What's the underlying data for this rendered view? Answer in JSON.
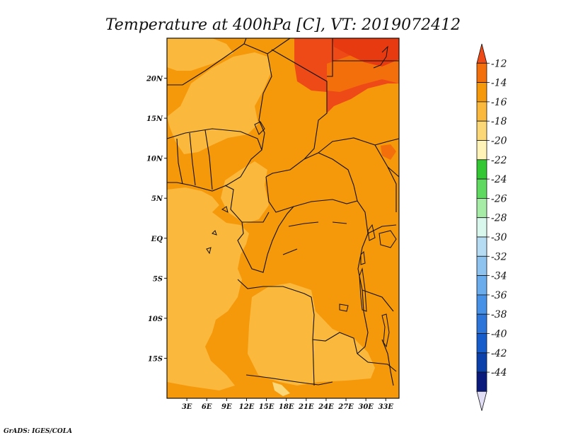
{
  "chart_data": {
    "type": "heatmap",
    "title": "Temperature at 400hPa [C], VT: 2019072412",
    "xlabel": "",
    "ylabel": "",
    "xlim": [
      0,
      35
    ],
    "ylim": [
      -20,
      25
    ],
    "x_ticks": [
      {
        "value": 3,
        "label": "3E"
      },
      {
        "value": 6,
        "label": "6E"
      },
      {
        "value": 9,
        "label": "9E"
      },
      {
        "value": 12,
        "label": "12E"
      },
      {
        "value": 15,
        "label": "15E"
      },
      {
        "value": 18,
        "label": "18E"
      },
      {
        "value": 21,
        "label": "21E"
      },
      {
        "value": 24,
        "label": "24E"
      },
      {
        "value": 27,
        "label": "27E"
      },
      {
        "value": 30,
        "label": "30E"
      },
      {
        "value": 33,
        "label": "33E"
      }
    ],
    "y_ticks": [
      {
        "value": 20,
        "label": "20N"
      },
      {
        "value": 15,
        "label": "15N"
      },
      {
        "value": 10,
        "label": "10N"
      },
      {
        "value": 5,
        "label": "5N"
      },
      {
        "value": 0,
        "label": "EQ"
      },
      {
        "value": -5,
        "label": "5S"
      },
      {
        "value": -10,
        "label": "10S"
      },
      {
        "value": -15,
        "label": "15S"
      }
    ],
    "colorbar": {
      "labels": [
        "-12",
        "-14",
        "-16",
        "-18",
        "-20",
        "-22",
        "-24",
        "-26",
        "-28",
        "-30",
        "-32",
        "-34",
        "-36",
        "-38",
        "-40",
        "-42",
        "-44"
      ],
      "colors": [
        "#ee4a18",
        "#f36f0c",
        "#f5980a",
        "#fab83d",
        "#fcd777",
        "#fff3b8",
        "#33c733",
        "#5fd95f",
        "#a6eca6",
        "#d9f7ec",
        "#b6dcf4",
        "#8ec3f0",
        "#6aacec",
        "#4792e6",
        "#2e75da",
        "#165ccb",
        "#0b3fa9",
        "#0a1a7c",
        "#e0ddf5"
      ]
    },
    "regions": [
      {
        "value_range": "-12 to -14",
        "color": "#ee4a18",
        "area": "northeast (upper Sudan)"
      },
      {
        "value_range": "-14 to -16",
        "color": "#f5980a",
        "area": "central and eastern domain"
      },
      {
        "value_range": "-16 to -18",
        "color": "#fab83d",
        "area": "west coast, Angola/Zambia, patches in north"
      },
      {
        "value_range": "-18 to -20",
        "color": "#fcd777",
        "area": "small patch near 17E 19S"
      }
    ],
    "credit": "GrADS: IGES/COLA"
  }
}
